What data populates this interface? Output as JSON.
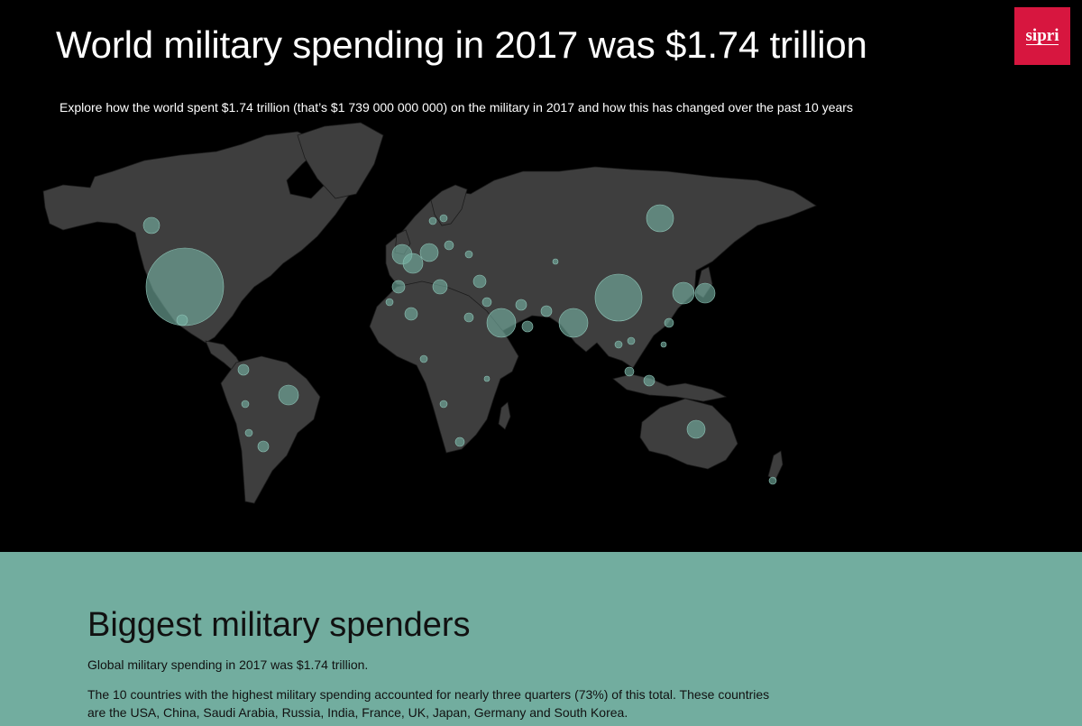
{
  "header": {
    "title": "World military spending in 2017 was $1.74 trillion",
    "subtitle": "Explore how the world spent $1.74 trillion (that’s $1 739 000 000 000) on the military in 2017 and how this has changed over the past 10 years",
    "logo_text": "sipri",
    "logo_color": "#d7163f"
  },
  "map": {
    "land_color": "#3e3e3e",
    "bubble_color": "#76b1a3"
  },
  "section": {
    "title": "Biggest military spenders",
    "paragraph1": "Global military spending in 2017 was $1.74 trillion.",
    "paragraph2": "The 10 countries with the highest military spending accounted for nearly three quarters (73%) of this total. These countries are the USA, China, Saudi Arabia, Russia, India, France, UK, Japan, Germany and South Korea.",
    "background_color": "#72ad9f"
  }
}
